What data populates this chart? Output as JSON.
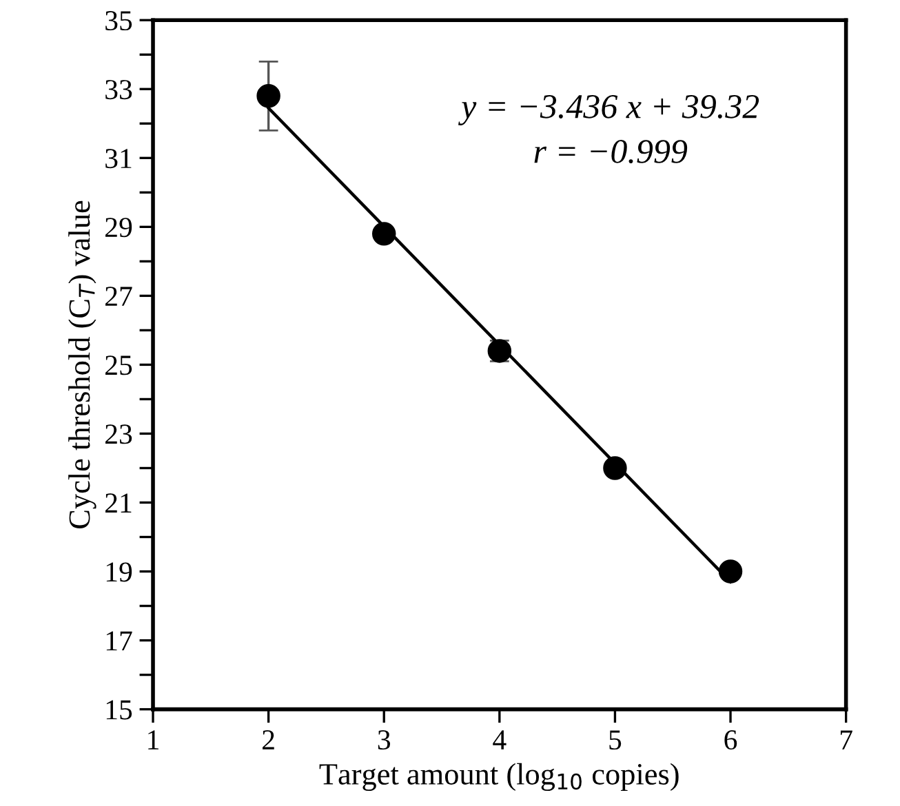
{
  "chart_data": {
    "type": "scatter",
    "xlabel": "Target amount (log$_{10}$ copies)",
    "ylabel": "Cycle threshold (C$_{T}$) value",
    "xlim": [
      1,
      7
    ],
    "xticks": [
      1,
      2,
      3,
      4,
      5,
      6,
      7
    ],
    "ylim": [
      15,
      35
    ],
    "yticks": [
      15,
      {
        "value": 16,
        "label": null
      },
      17,
      {
        "value": 18,
        "label": null
      },
      19,
      {
        "value": 20,
        "label": null
      },
      21,
      {
        "value": 22,
        "label": null
      },
      23,
      {
        "value": 24,
        "label": null
      },
      25,
      {
        "value": 26,
        "label": null
      },
      27,
      {
        "value": 28,
        "label": null
      },
      29,
      {
        "value": 30,
        "label": null
      },
      31,
      {
        "value": 32,
        "label": null
      },
      33,
      {
        "value": 34,
        "label": null
      },
      35
    ],
    "grid": false,
    "legend": false,
    "series": [
      {
        "marker": "circle",
        "color": "#000000",
        "x": [
          2,
          3,
          4,
          5,
          6
        ],
        "values": [
          32.8,
          28.8,
          25.4,
          22.0,
          19.0
        ],
        "errors": [
          1.0,
          null,
          0.3,
          null,
          null
        ]
      },
      {
        "type": "line",
        "color": "#000000",
        "x": [
          2,
          6
        ],
        "values": [
          32.45,
          18.7
        ],
        "line_style": "solid",
        "marker": "none"
      }
    ],
    "annotations": [
      "y = −3.436 x + 39.32",
      "r = −0.999"
    ]
  }
}
